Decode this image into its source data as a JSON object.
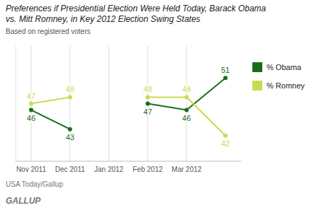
{
  "chart_data": {
    "type": "line",
    "title": "Preferences if Presidential Election Were Held Today, Barack Obama\nvs. Mitt Romney, in Key 2012 Election Swing States",
    "subtitle": "Based on registered voters",
    "annotations": [
      "USA Today/Gallup",
      "GALLUP"
    ],
    "categories": [
      "Nov 2011",
      "Dec 2011",
      "Jan 2012",
      "Feb 2012",
      "Mar 2012",
      null
    ],
    "series": [
      {
        "name": "% Obama",
        "color": "#1a6b1a",
        "marker": "circle",
        "values": [
          46,
          43,
          null,
          47,
          46,
          51
        ]
      },
      {
        "name": "% Romney",
        "color": "#c8dc50",
        "marker": "circle",
        "values": [
          47,
          48,
          null,
          48,
          48,
          42
        ]
      }
    ],
    "ylim": [
      38,
      56
    ],
    "grid": true,
    "legend": "right",
    "data_labels": true,
    "tick_labels": "x"
  }
}
